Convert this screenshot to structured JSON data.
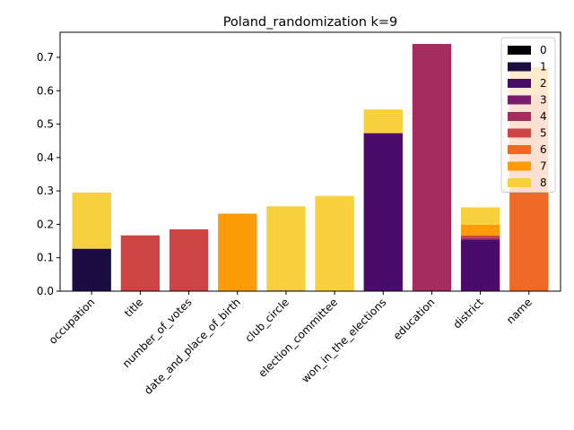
{
  "chart_data": {
    "type": "bar",
    "stacked": true,
    "title": "Poland_randomization k=9",
    "xlabel": "",
    "ylabel": "",
    "ylim": [
      0,
      0.775
    ],
    "yticks": [
      0.0,
      0.1,
      0.2,
      0.3,
      0.4,
      0.5,
      0.6,
      0.7
    ],
    "ytick_labels": [
      "0.0",
      "0.1",
      "0.2",
      "0.3",
      "0.4",
      "0.5",
      "0.6",
      "0.7"
    ],
    "grid": false,
    "legend_position": "top-right",
    "categories": [
      "occupation",
      "title",
      "number_of_votes",
      "date_and_place_of_birth",
      "club_circle",
      "election_committee",
      "won_in_the_elections",
      "education",
      "district",
      "name"
    ],
    "series": [
      {
        "name": "0",
        "color": "#000004",
        "values": [
          0,
          0,
          0,
          0,
          0,
          0,
          0,
          0,
          0,
          0
        ]
      },
      {
        "name": "1",
        "color": "#1b0c41",
        "values": [
          0.127,
          0,
          0,
          0,
          0.002,
          0,
          0,
          0,
          0,
          0
        ]
      },
      {
        "name": "2",
        "color": "#4a0c6b",
        "values": [
          0,
          0,
          0,
          0,
          0,
          0,
          0.473,
          0,
          0.155,
          0
        ]
      },
      {
        "name": "3",
        "color": "#781c6d",
        "values": [
          0,
          0,
          0,
          0,
          0,
          0,
          0,
          0,
          0,
          0
        ]
      },
      {
        "name": "4",
        "color": "#a52c60",
        "values": [
          0,
          0,
          0,
          0,
          0,
          0,
          0,
          0.74,
          0.005,
          0
        ]
      },
      {
        "name": "5",
        "color": "#cf4446",
        "values": [
          0,
          0.167,
          0.185,
          0,
          0,
          0,
          0,
          0,
          0.007,
          0
        ]
      },
      {
        "name": "6",
        "color": "#ed6925",
        "values": [
          0,
          0,
          0,
          0,
          0,
          0,
          0,
          0,
          0,
          0.588
        ]
      },
      {
        "name": "7",
        "color": "#fb9b06",
        "values": [
          0,
          0,
          0,
          0.232,
          0,
          0,
          0,
          0,
          0.032,
          0.082
        ]
      },
      {
        "name": "8",
        "color": "#f7d13d",
        "values": [
          0.168,
          0,
          0,
          0,
          0.252,
          0.285,
          0.071,
          0,
          0.052,
          0
        ]
      }
    ]
  }
}
